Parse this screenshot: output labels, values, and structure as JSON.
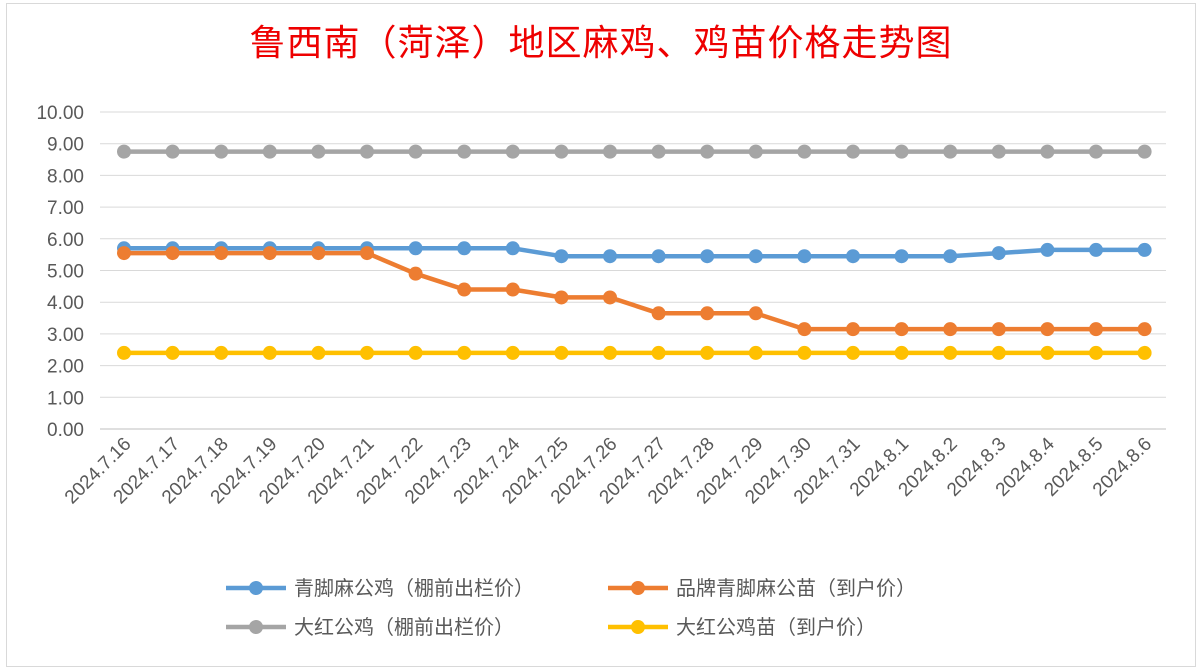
{
  "chart_data": {
    "type": "line",
    "title": "鲁西南（菏泽）地区麻鸡、鸡苗价格走势图",
    "xlabel": "",
    "ylabel": "",
    "ylim": [
      0,
      10
    ],
    "ytick_step": 1,
    "ytick_labels": [
      "0.00",
      "1.00",
      "2.00",
      "3.00",
      "4.00",
      "5.00",
      "6.00",
      "7.00",
      "8.00",
      "9.00",
      "10.00"
    ],
    "grid": true,
    "legend_position": "bottom",
    "categories": [
      "2024.7.16",
      "2024.7.17",
      "2024.7.18",
      "2024.7.19",
      "2024.7.20",
      "2024.7.21",
      "2024.7.22",
      "2024.7.23",
      "2024.7.24",
      "2024.7.25",
      "2024.7.26",
      "2024.7.27",
      "2024.7.28",
      "2024.7.29",
      "2024.7.30",
      "2024.7.31",
      "2024.8.1",
      "2024.8.2",
      "2024.8.3",
      "2024.8.4",
      "2024.8.5",
      "2024.8.6"
    ],
    "series": [
      {
        "name": "青脚麻公鸡（棚前出栏价）",
        "color": "#5b9bd5",
        "values": [
          5.7,
          5.7,
          5.7,
          5.7,
          5.7,
          5.7,
          5.7,
          5.7,
          5.7,
          5.45,
          5.45,
          5.45,
          5.45,
          5.45,
          5.45,
          5.45,
          5.45,
          5.45,
          5.55,
          5.65,
          5.65,
          5.65
        ]
      },
      {
        "name": "品牌青脚麻公苗（到户价）",
        "color": "#ed7d31",
        "values": [
          5.55,
          5.55,
          5.55,
          5.55,
          5.55,
          5.55,
          4.9,
          4.4,
          4.4,
          4.15,
          4.15,
          3.65,
          3.65,
          3.65,
          3.15,
          3.15,
          3.15,
          3.15,
          3.15,
          3.15,
          3.15,
          3.15
        ]
      },
      {
        "name": "大红公鸡（棚前出栏价）",
        "color": "#a5a5a5",
        "values": [
          8.75,
          8.75,
          8.75,
          8.75,
          8.75,
          8.75,
          8.75,
          8.75,
          8.75,
          8.75,
          8.75,
          8.75,
          8.75,
          8.75,
          8.75,
          8.75,
          8.75,
          8.75,
          8.75,
          8.75,
          8.75,
          8.75
        ]
      },
      {
        "name": "大红公鸡苗（到户价）",
        "color": "#ffc000",
        "values": [
          2.4,
          2.4,
          2.4,
          2.4,
          2.4,
          2.4,
          2.4,
          2.4,
          2.4,
          2.4,
          2.4,
          2.4,
          2.4,
          2.4,
          2.4,
          2.4,
          2.4,
          2.4,
          2.4,
          2.4,
          2.4,
          2.4
        ]
      }
    ]
  }
}
